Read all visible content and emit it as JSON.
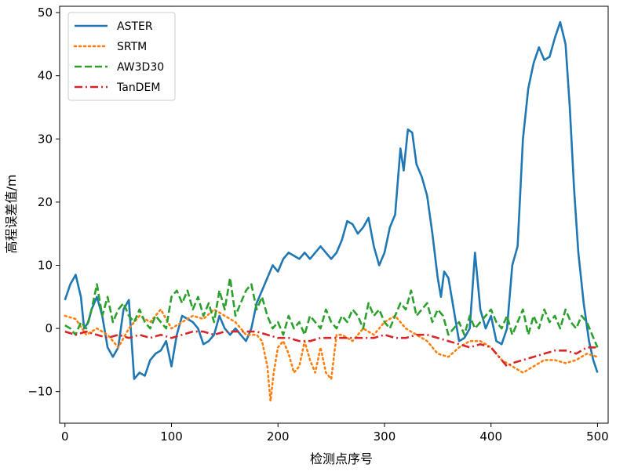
{
  "chart_data": {
    "type": "line",
    "xlabel": "检测点序号",
    "ylabel": "高程误差值/m",
    "xlim": [
      -5,
      510
    ],
    "ylim": [
      -15,
      51
    ],
    "xticks": [
      0,
      100,
      200,
      300,
      400,
      500
    ],
    "yticks": [
      -10,
      0,
      10,
      20,
      30,
      40,
      50
    ],
    "grid": false,
    "legend_position": "top-left",
    "series": [
      {
        "name": "ASTER",
        "color": "#1f77b4",
        "dash": "solid",
        "x": [
          0,
          5,
          10,
          15,
          18,
          22,
          25,
          30,
          35,
          40,
          45,
          50,
          55,
          60,
          65,
          70,
          75,
          80,
          85,
          90,
          95,
          100,
          105,
          110,
          115,
          120,
          125,
          130,
          135,
          140,
          145,
          150,
          155,
          160,
          165,
          170,
          175,
          180,
          185,
          190,
          195,
          200,
          205,
          210,
          215,
          220,
          225,
          230,
          235,
          240,
          245,
          250,
          255,
          260,
          265,
          270,
          275,
          280,
          285,
          290,
          295,
          300,
          305,
          310,
          315,
          318,
          322,
          326,
          330,
          335,
          340,
          345,
          350,
          353,
          356,
          360,
          365,
          370,
          375,
          380,
          385,
          390,
          395,
          400,
          405,
          410,
          415,
          420,
          425,
          430,
          435,
          440,
          445,
          450,
          455,
          460,
          465,
          470,
          474,
          478,
          482,
          487,
          492,
          496,
          500
        ],
        "y": [
          4.5,
          7,
          8.5,
          5,
          0,
          1,
          3,
          5,
          2,
          -3,
          -4.5,
          -3,
          3,
          4.5,
          -8,
          -7,
          -7.5,
          -5,
          -4,
          -3.5,
          -2,
          -6,
          -1,
          2,
          1.5,
          1,
          0,
          -2.5,
          -2,
          -1,
          2,
          0,
          -1,
          0,
          -1,
          -2,
          0,
          4,
          6,
          8,
          10,
          9,
          11,
          12,
          11.5,
          11,
          12,
          11,
          12,
          13,
          12,
          11,
          12,
          14,
          17,
          16.5,
          15,
          16,
          17.5,
          13,
          10,
          12,
          16,
          18,
          28.5,
          25,
          31.5,
          31,
          26,
          24,
          21,
          15,
          8,
          5,
          9,
          8,
          3,
          -2,
          -1.5,
          0,
          12,
          3,
          0,
          2,
          -2,
          -2.5,
          0,
          10,
          13,
          30,
          38,
          42,
          44.5,
          42.5,
          43,
          46,
          48.5,
          45,
          35,
          22,
          12,
          4,
          -2,
          -5,
          -7
        ]
      },
      {
        "name": "SRTM",
        "color": "#ff7f0e",
        "dash": "dotted",
        "x": [
          0,
          10,
          20,
          30,
          40,
          50,
          60,
          70,
          80,
          90,
          100,
          110,
          120,
          130,
          140,
          150,
          160,
          170,
          180,
          185,
          190,
          193,
          196,
          200,
          205,
          210,
          215,
          220,
          225,
          230,
          235,
          240,
          245,
          250,
          255,
          260,
          270,
          280,
          290,
          300,
          310,
          320,
          330,
          340,
          350,
          360,
          370,
          380,
          390,
          400,
          410,
          420,
          430,
          440,
          450,
          460,
          470,
          480,
          490,
          500
        ],
        "y": [
          2,
          1.5,
          -1,
          0,
          -1,
          -3,
          0,
          2,
          1,
          3,
          0,
          1,
          2,
          1.5,
          3,
          2,
          1,
          -1,
          -1,
          -2,
          -6,
          -11.5,
          -7,
          -3,
          -2,
          -4,
          -7,
          -6,
          -2,
          -5,
          -7,
          -3,
          -7,
          -8,
          -1,
          -1,
          -2,
          0,
          -1,
          1,
          2,
          0,
          -1,
          -2,
          -4,
          -4.5,
          -3,
          -2,
          -2,
          -3,
          -5,
          -6,
          -7,
          -6,
          -5,
          -5,
          -5.5,
          -5,
          -4,
          -4.5
        ]
      },
      {
        "name": "AW3D30",
        "color": "#2ca02c",
        "dash": "dashed",
        "x": [
          0,
          5,
          10,
          15,
          20,
          25,
          30,
          35,
          40,
          45,
          50,
          55,
          60,
          65,
          70,
          75,
          80,
          85,
          90,
          95,
          100,
          105,
          110,
          115,
          120,
          125,
          130,
          135,
          140,
          145,
          150,
          155,
          160,
          165,
          170,
          175,
          180,
          185,
          190,
          195,
          200,
          205,
          210,
          215,
          220,
          225,
          230,
          235,
          240,
          245,
          250,
          255,
          260,
          265,
          270,
          275,
          280,
          285,
          290,
          295,
          300,
          305,
          310,
          315,
          320,
          325,
          330,
          335,
          340,
          345,
          350,
          355,
          360,
          365,
          370,
          375,
          380,
          385,
          390,
          395,
          400,
          405,
          410,
          415,
          420,
          425,
          430,
          435,
          440,
          445,
          450,
          455,
          460,
          465,
          470,
          475,
          480,
          485,
          490,
          495,
          500
        ],
        "y": [
          0.5,
          0,
          -1,
          1,
          0,
          3,
          7,
          2,
          5,
          1,
          3,
          4,
          2,
          1,
          3,
          1,
          0,
          2,
          1,
          0,
          5,
          6,
          4,
          6,
          3,
          5,
          2,
          4,
          1,
          6,
          3,
          8,
          2,
          4,
          6,
          7,
          3,
          5,
          2,
          0,
          1,
          -1,
          2,
          0,
          1,
          -1,
          2,
          1,
          0,
          3,
          1,
          0,
          2,
          1,
          3,
          2,
          0,
          4,
          2,
          3,
          1,
          0,
          2,
          4,
          3,
          6,
          2,
          3,
          4,
          1,
          3,
          2,
          -1,
          0,
          1,
          -1,
          2,
          0,
          1,
          2,
          3,
          1,
          0,
          2,
          -1,
          1,
          3,
          -1,
          2,
          0,
          3,
          1,
          2,
          0,
          3,
          1,
          0,
          2,
          1,
          -1,
          -3
        ]
      },
      {
        "name": "TanDEM",
        "color": "#d62728",
        "dash": "dashdot",
        "x": [
          0,
          10,
          20,
          30,
          40,
          50,
          60,
          70,
          80,
          90,
          100,
          110,
          120,
          130,
          140,
          150,
          160,
          170,
          180,
          190,
          200,
          210,
          220,
          230,
          240,
          250,
          260,
          270,
          280,
          290,
          300,
          310,
          320,
          330,
          340,
          350,
          360,
          370,
          380,
          390,
          400,
          410,
          415,
          420,
          430,
          440,
          450,
          460,
          470,
          480,
          490,
          500
        ],
        "y": [
          -0.5,
          -1,
          -0.5,
          -1,
          -1.5,
          -1,
          -1.5,
          -1,
          -1.5,
          -1,
          -1.5,
          -1,
          -0.5,
          -0.5,
          -1,
          -0.5,
          -0.5,
          -0.5,
          -0.5,
          -1,
          -1.5,
          -1.5,
          -2,
          -2,
          -1.5,
          -1.5,
          -1.5,
          -1.5,
          -1.5,
          -1.5,
          -1,
          -1.5,
          -1.5,
          -1,
          -1,
          -1.5,
          -2,
          -2.5,
          -3,
          -2.5,
          -3,
          -5,
          -6,
          -5.5,
          -5,
          -4.5,
          -4,
          -3.5,
          -3.5,
          -4,
          -3,
          -3
        ]
      }
    ]
  }
}
